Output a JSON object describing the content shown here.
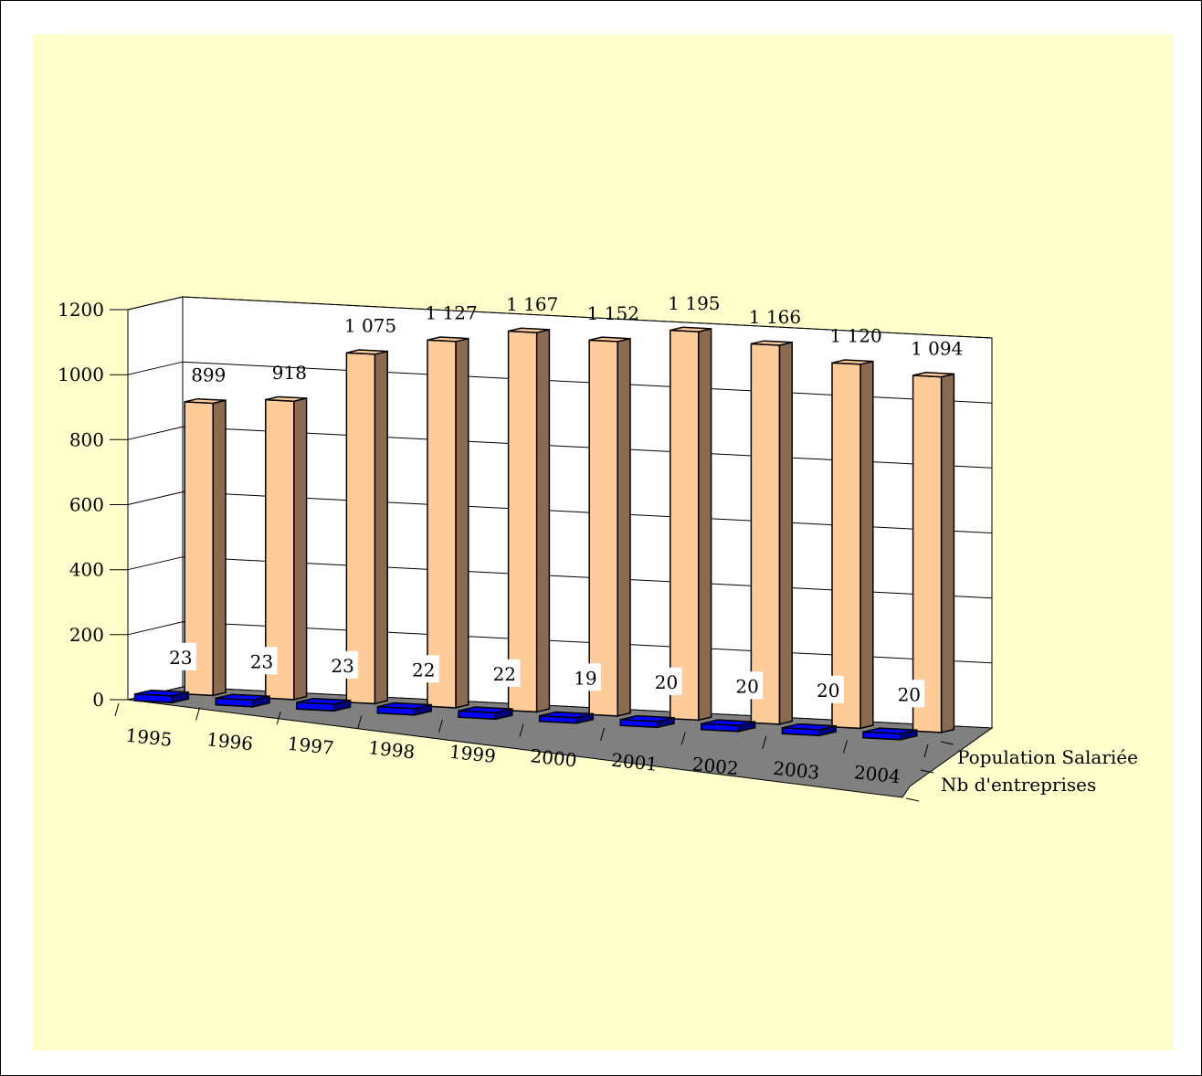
{
  "chart_data": {
    "type": "bar",
    "categories": [
      "1995",
      "1996",
      "1997",
      "1998",
      "1999",
      "2000",
      "2001",
      "2002",
      "2003",
      "2004"
    ],
    "series": [
      {
        "name": "Population Salariée",
        "values": [
          899,
          918,
          1075,
          1127,
          1167,
          1152,
          1195,
          1166,
          1120,
          1094
        ],
        "labels": [
          "899",
          "918",
          "1 075",
          "1 127",
          "1 167",
          "1 152",
          "1 195",
          "1 166",
          "1 120",
          "1 094"
        ]
      },
      {
        "name": "Nb d'entreprises",
        "values": [
          23,
          23,
          23,
          22,
          22,
          19,
          20,
          20,
          20,
          20
        ],
        "labels": [
          "23",
          "23",
          "23",
          "22",
          "22",
          "19",
          "20",
          "20",
          "20",
          "20"
        ]
      }
    ],
    "y_ticks": [
      "0",
      "200",
      "400",
      "600",
      "800",
      "1000",
      "1200"
    ],
    "ylim": [
      0,
      1200
    ],
    "grid": true,
    "three_d": true,
    "colors": {
      "outer_background": "#FFFFCC",
      "plot_walls": "#FFFFFF",
      "floor": "#808080",
      "population_front": "#FFCC99",
      "population_side": "#8B6B4F",
      "entreprises_front": "#0000FF",
      "entreprises_side": "#000080"
    }
  }
}
